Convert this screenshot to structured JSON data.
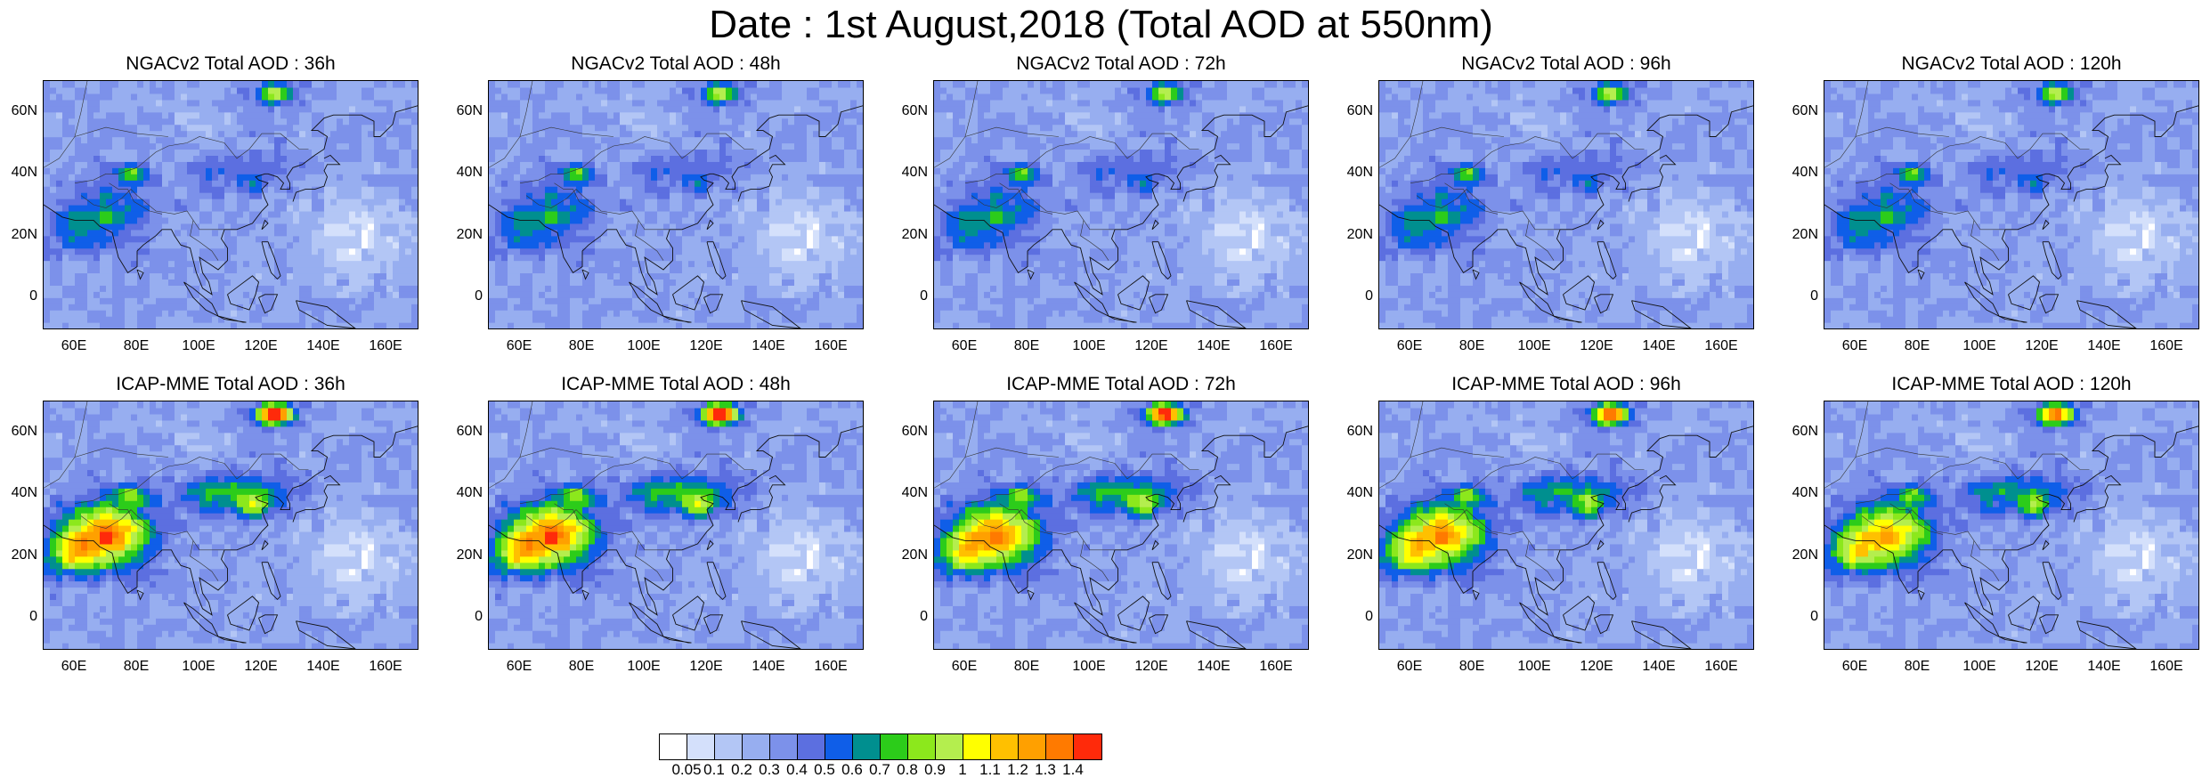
{
  "title": "Date : 1st August,2018 (Total AOD at 550nm)",
  "panels": [
    {
      "title": "NGACv2 Total AOD : 36h",
      "model": "ngac",
      "intensity": 0.55
    },
    {
      "title": "NGACv2 Total AOD : 48h",
      "model": "ngac",
      "intensity": 0.6
    },
    {
      "title": "NGACv2 Total AOD : 72h",
      "model": "ngac",
      "intensity": 0.6
    },
    {
      "title": "NGACv2 Total AOD : 96h",
      "model": "ngac",
      "intensity": 0.62
    },
    {
      "title": "NGACv2 Total AOD : 120h",
      "model": "ngac",
      "intensity": 0.6
    },
    {
      "title": "ICAP-MME Total AOD : 36h",
      "model": "icap",
      "intensity": 1.0
    },
    {
      "title": "ICAP-MME Total AOD : 48h",
      "model": "icap",
      "intensity": 1.0
    },
    {
      "title": "ICAP-MME Total AOD : 72h",
      "model": "icap",
      "intensity": 0.95
    },
    {
      "title": "ICAP-MME Total AOD : 96h",
      "model": "icap",
      "intensity": 0.9
    },
    {
      "title": "ICAP-MME Total AOD : 120h",
      "model": "icap",
      "intensity": 0.85
    }
  ],
  "axes": {
    "lon_range": [
      50,
      170
    ],
    "lat_range": [
      -10,
      70
    ],
    "x_ticks": [
      "60E",
      "80E",
      "100E",
      "120E",
      "140E",
      "160E"
    ],
    "x_values": [
      60,
      80,
      100,
      120,
      140,
      160
    ],
    "y_ticks": [
      "0",
      "20N",
      "40N",
      "60N"
    ],
    "y_values": [
      0,
      20,
      40,
      60
    ]
  },
  "colorbar": {
    "colors": [
      "#ffffff",
      "#d4e0fb",
      "#b3c6f5",
      "#97aef0",
      "#7c91ea",
      "#5c6fe0",
      "#0f5ee8",
      "#008f8f",
      "#2ccc1a",
      "#8ce81c",
      "#b4ee4e",
      "#ffff00",
      "#ffc000",
      "#ffa000",
      "#ff7a00",
      "#ff2a0a"
    ],
    "labels": [
      "0.05",
      "0.1",
      "0.2",
      "0.3",
      "0.4",
      "0.5",
      "0.6",
      "0.7",
      "0.8",
      "0.9",
      "1",
      "1.1",
      "1.2",
      "1.3",
      "1.4"
    ]
  }
}
